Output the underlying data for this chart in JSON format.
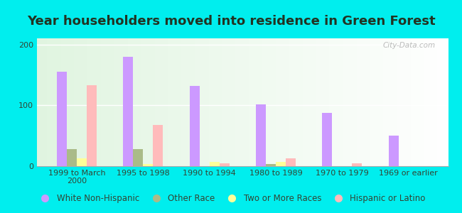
{
  "title": "Year householders moved into residence in Green Forest",
  "categories": [
    "1999 to March\n2000",
    "1995 to 1998",
    "1990 to 1994",
    "1980 to 1989",
    "1970 to 1979",
    "1969 or earlier"
  ],
  "series": {
    "White Non-Hispanic": [
      155,
      180,
      132,
      101,
      87,
      50
    ],
    "Other Race": [
      28,
      28,
      0,
      4,
      0,
      0
    ],
    "Two or More Races": [
      13,
      4,
      7,
      7,
      0,
      0
    ],
    "Hispanic or Latino": [
      133,
      68,
      5,
      13,
      5,
      0
    ]
  },
  "colors": {
    "White Non-Hispanic": "#cc99ff",
    "Other Race": "#aabb88",
    "Two or More Races": "#ffff99",
    "Hispanic or Latino": "#ffbbbb"
  },
  "ylim": [
    0,
    210
  ],
  "yticks": [
    0,
    100,
    200
  ],
  "bg_outer": "#00eeee",
  "watermark": "City-Data.com",
  "legend_fontsize": 8.5,
  "title_fontsize": 13,
  "title_color": "#223322",
  "tick_color": "#334433",
  "bar_width": 0.15
}
